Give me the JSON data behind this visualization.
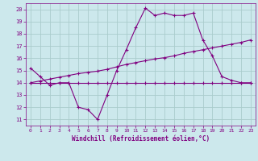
{
  "bg_color": "#cce8ec",
  "line_color": "#800080",
  "grid_color": "#aacccc",
  "xlabel": "Windchill (Refroidissement éolien,°C)",
  "xlabel_color": "#800080",
  "tick_color": "#800080",
  "xlim": [
    -0.5,
    23.5
  ],
  "ylim": [
    10.5,
    20.5
  ],
  "yticks": [
    11,
    12,
    13,
    14,
    15,
    16,
    17,
    18,
    19,
    20
  ],
  "xticks": [
    0,
    1,
    2,
    3,
    4,
    5,
    6,
    7,
    8,
    9,
    10,
    11,
    12,
    13,
    14,
    15,
    16,
    17,
    18,
    19,
    20,
    21,
    22,
    23
  ],
  "line1_x": [
    0,
    1,
    2,
    3,
    4,
    5,
    6,
    7,
    8,
    9,
    10,
    11,
    12,
    13,
    14,
    15,
    16,
    17,
    18,
    19,
    20,
    21,
    22,
    23
  ],
  "line1_y": [
    15.2,
    14.5,
    13.8,
    14.0,
    14.0,
    12.0,
    11.8,
    11.0,
    13.0,
    15.0,
    16.7,
    18.5,
    20.1,
    19.5,
    19.7,
    19.5,
    19.5,
    19.7,
    17.5,
    16.2,
    14.5,
    14.2,
    14.0,
    14.0
  ],
  "line2_x": [
    0,
    1,
    2,
    3,
    4,
    5,
    6,
    7,
    8,
    9,
    10,
    11,
    12,
    13,
    14,
    15,
    16,
    17,
    18,
    19,
    20,
    21,
    22,
    23
  ],
  "line2_y": [
    14.0,
    14.15,
    14.3,
    14.45,
    14.6,
    14.75,
    14.85,
    14.95,
    15.1,
    15.3,
    15.5,
    15.65,
    15.8,
    15.95,
    16.05,
    16.2,
    16.4,
    16.55,
    16.7,
    16.85,
    17.0,
    17.15,
    17.3,
    17.5
  ],
  "line3_x": [
    0,
    1,
    2,
    3,
    4,
    5,
    6,
    7,
    8,
    9,
    10,
    11,
    12,
    13,
    14,
    15,
    16,
    17,
    18,
    19,
    20,
    21,
    22,
    23
  ],
  "line3_y": [
    14.0,
    14.0,
    14.0,
    14.0,
    14.0,
    14.0,
    14.0,
    14.0,
    14.0,
    14.0,
    14.0,
    14.0,
    14.0,
    14.0,
    14.0,
    14.0,
    14.0,
    14.0,
    14.0,
    14.0,
    14.0,
    14.0,
    14.0,
    14.0
  ]
}
